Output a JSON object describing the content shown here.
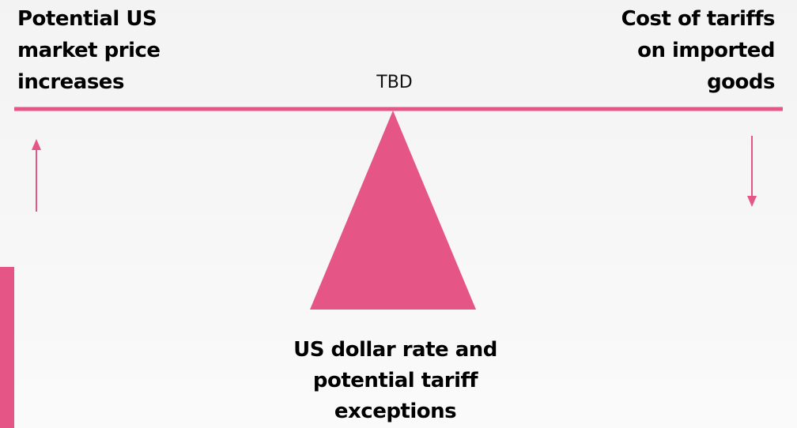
{
  "left_label": [
    "Potential US",
    "market price",
    "increases"
  ],
  "right_label": [
    "Cost of tariffs",
    "on imported",
    "goods"
  ],
  "center_label": "TBD",
  "bottom_label": [
    "US dollar rate and",
    "potential tariff",
    "exceptions"
  ]
}
